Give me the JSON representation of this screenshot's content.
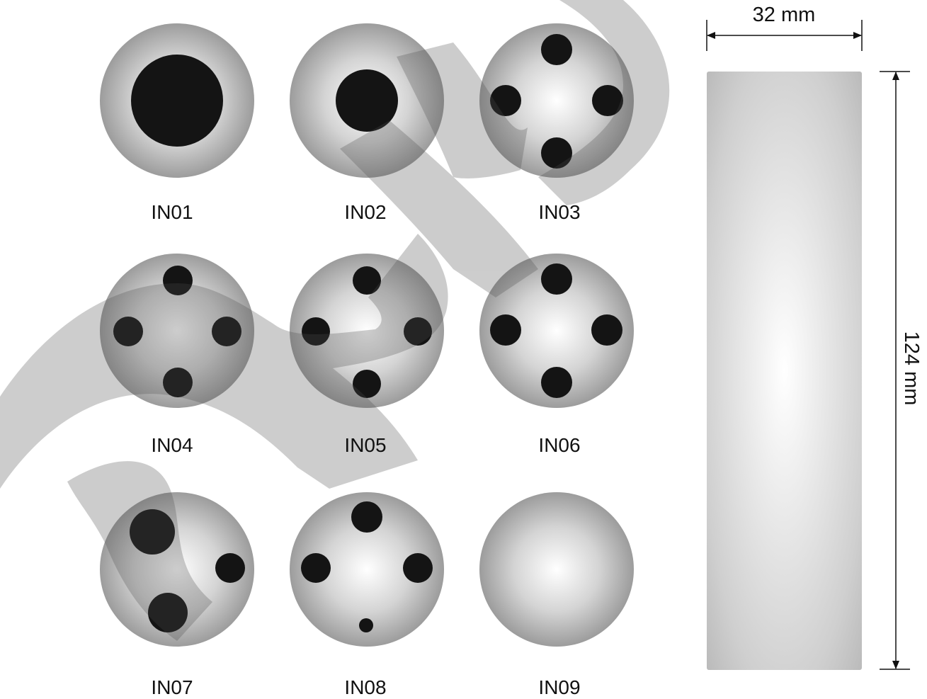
{
  "figure": {
    "samples": [
      {
        "label": "IN01"
      },
      {
        "label": "IN02"
      },
      {
        "label": "IN03"
      },
      {
        "label": "IN04"
      },
      {
        "label": "IN05"
      },
      {
        "label": "IN06"
      },
      {
        "label": "IN07"
      },
      {
        "label": "IN08"
      },
      {
        "label": "IN09"
      }
    ],
    "specimen": {
      "width_label": "32 mm",
      "height_label": "124 mm"
    },
    "colors": {
      "disc_light": "#ffffff",
      "disc_dark": "#9a9a9a",
      "inclusion": "#141414",
      "watermark": "#4d4d4d",
      "line": "#111111"
    },
    "watermark_icon": "diagonal-watermark-stroke"
  }
}
